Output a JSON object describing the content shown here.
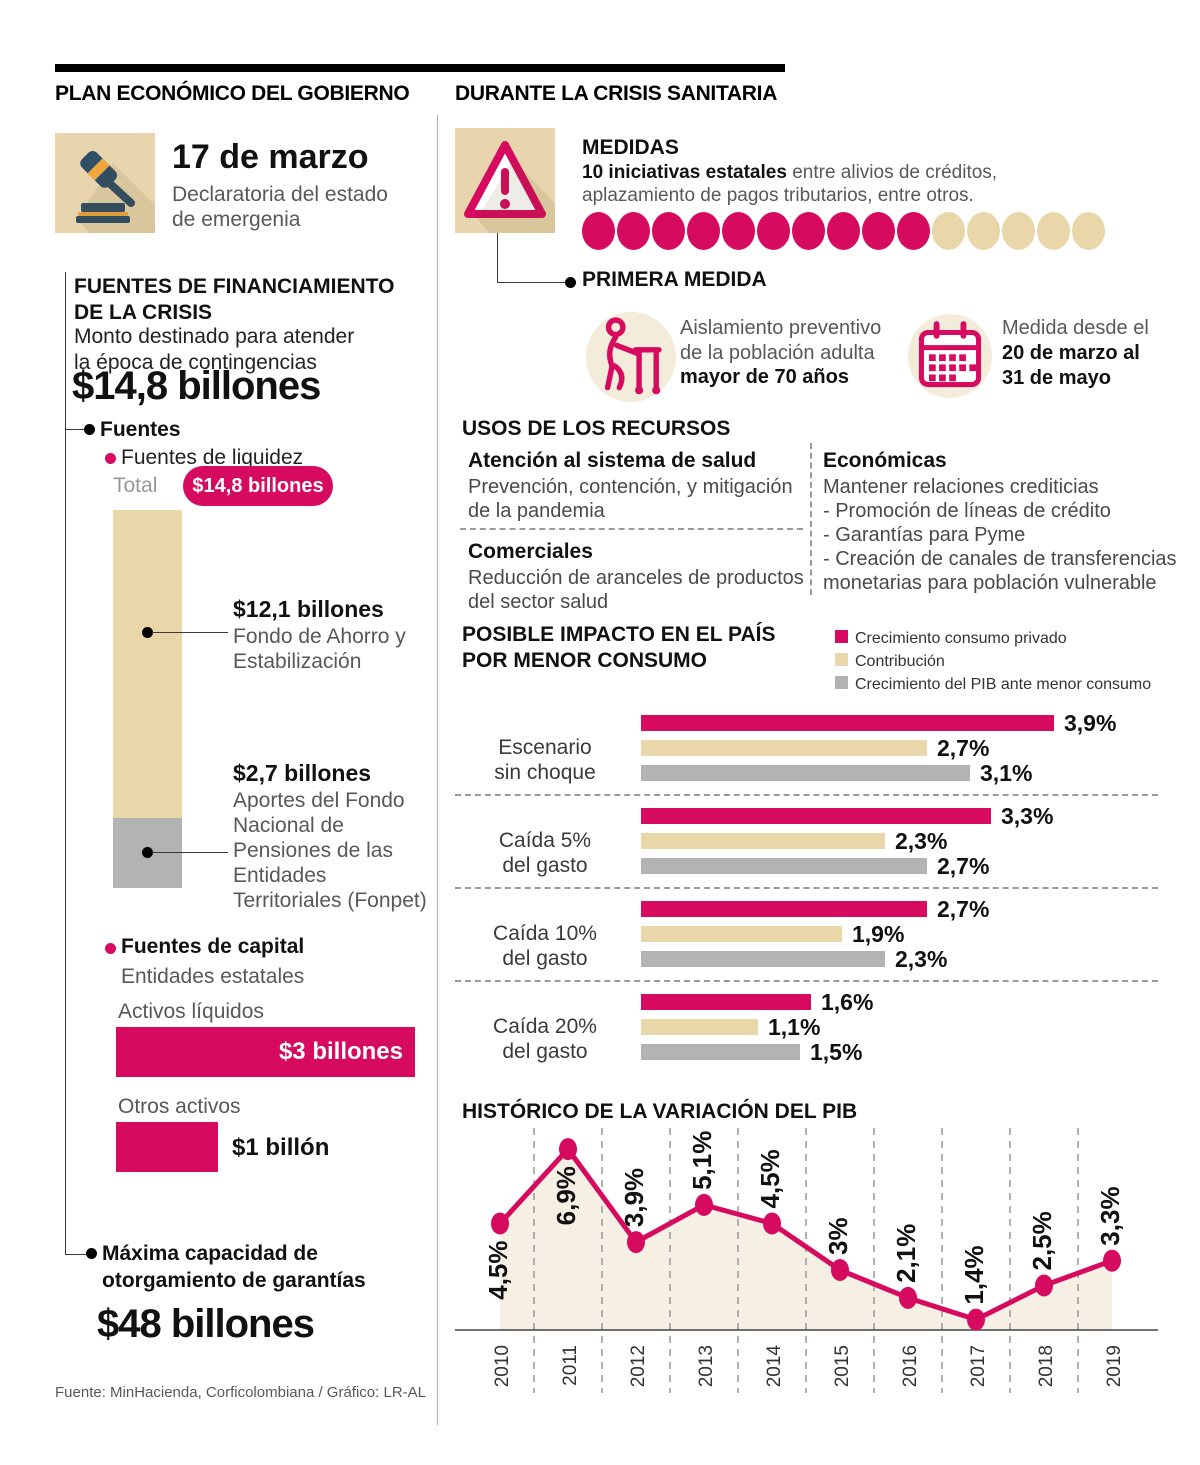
{
  "colors": {
    "pink": "#d60a5e",
    "beige": "#e9d6a9",
    "beige_light": "#f4ecda",
    "gray": "#b3b3b3",
    "area": "#f6efe3"
  },
  "left": {
    "title": "PLAN ECONÓMICO DEL GOBIERNO",
    "event": {
      "date": "17 de marzo",
      "desc": "Declaratoria del estado\nde emergenia"
    },
    "funding": {
      "title": "FUENTES DE FINANCIAMIENTO\nDE LA CRISIS",
      "subtitle": "Monto destinado para atender\nla época de contingencias",
      "amount": "$14,8 billones",
      "fuentes_label": "Fuentes",
      "liquidity_label": "Fuentes de liquidez",
      "total_label": "Total",
      "total_value": "$14,8 billones",
      "segment1_value": "$12,1 billones",
      "segment1_label": "Fondo de Ahorro y\nEstabilización",
      "segment2_value": "$2,7 billones",
      "segment2_label": "Aportes del Fondo\nNacional de\nPensiones de las\nEntidades\nTerritoriales (Fonpet)",
      "capital_label": "Fuentes de capital",
      "capital_sub": "Entidades estatales",
      "bar1_label": "Activos líquidos",
      "bar1_value": "$3 billones",
      "bar2_label": "Otros activos",
      "bar2_value": "$1 billón",
      "max_label": "Máxima capacidad de\notorgamiento de garantías",
      "max_value": "$48 billones"
    },
    "source": "Fuente: MinHacienda, Corficolombiana / Gráfico: LR-AL"
  },
  "right": {
    "title": "DURANTE LA CRISIS SANITARIA",
    "medidas": {
      "heading": "MEDIDAS",
      "line1_bold": "10 iniciativas estatales",
      "line1_rest": " entre alivios de créditos,",
      "line2": "aplazamiento de pagos tributarios, entre otros.",
      "dots_pink": 10,
      "dots_beige": 5
    },
    "primera": {
      "heading": "PRIMERA MEDIDA",
      "isolation_l1": "Aislamiento preventivo\nde la población adulta",
      "isolation_l2": "mayor de 70 años",
      "dates_l1": "Medida desde el",
      "dates_l2": "20 de marzo al\n31 de mayo"
    },
    "usos": {
      "heading": "USOS DE LOS RECURSOS",
      "cellA_title": "Atención al sistema de salud",
      "cellA_body": "Prevención, contención, y mitigación\nde la pandemia",
      "cellB_title": "Comerciales",
      "cellB_body": "Reducción de aranceles de productos\ndel sector salud",
      "cellC_title": "Económicas",
      "cellC_body": "Mantener relaciones crediticias\n- Promoción de líneas de crédito\n- Garantías para Pyme\n- Creación de canales de transferencias\nmonetarias para población vulnerable"
    },
    "impact_heading": "POSIBLE IMPACTO EN EL PAÍS\nPOR MENOR CONSUMO",
    "pib_heading": "HISTÓRICO DE LA VARIACIÓN DEL PIB"
  },
  "chart_data": [
    {
      "type": "bar",
      "orientation": "horizontal",
      "title": "POSIBLE IMPACTO EN EL PAÍS POR MENOR CONSUMO",
      "categories": [
        "Escenario\nsin choque",
        "Caída 5%\ndel gasto",
        "Caída 10%\ndel gasto",
        "Caída 20%\ndel gasto"
      ],
      "series": [
        {
          "name": "Crecimiento consumo privado",
          "color": "#d60a5e",
          "values": [
            3.9,
            3.3,
            2.7,
            1.6
          ],
          "labels": [
            "3,9%",
            "3,3%",
            "2,7%",
            "1,6%"
          ]
        },
        {
          "name": "Contribución",
          "color": "#e9d6a9",
          "values": [
            2.7,
            2.3,
            1.9,
            1.1
          ],
          "labels": [
            "2,7%",
            "2,3%",
            "1,9%",
            "1,1%"
          ]
        },
        {
          "name": "Crecimiento del PIB ante menor consumo",
          "color": "#b3b3b3",
          "values": [
            3.1,
            2.7,
            2.3,
            1.5
          ],
          "labels": [
            "3,1%",
            "2,7%",
            "2,3%",
            "1,5%"
          ]
        }
      ],
      "xlim": [
        0,
        4.2
      ],
      "grid": "dashed-row-separators",
      "legend_position": "top-right"
    },
    {
      "type": "line",
      "title": "HISTÓRICO DE LA VARIACIÓN DEL PIB",
      "x": [
        2010,
        2011,
        2012,
        2013,
        2014,
        2015,
        2016,
        2017,
        2018,
        2019
      ],
      "values": [
        4.5,
        6.9,
        3.9,
        5.1,
        4.5,
        3,
        2.1,
        1.4,
        2.5,
        3.3
      ],
      "labels": [
        "4,5%",
        "6,9%",
        "3,9%",
        "5,1%",
        "4,5%",
        "3%",
        "2,1%",
        "1,4%",
        "2,5%",
        "3,3%"
      ],
      "ylim": [
        0,
        7.5
      ],
      "line_color": "#d60a5e",
      "area_fill": "#f6efe3",
      "grid": "dashed-vertical-midpoints"
    }
  ]
}
